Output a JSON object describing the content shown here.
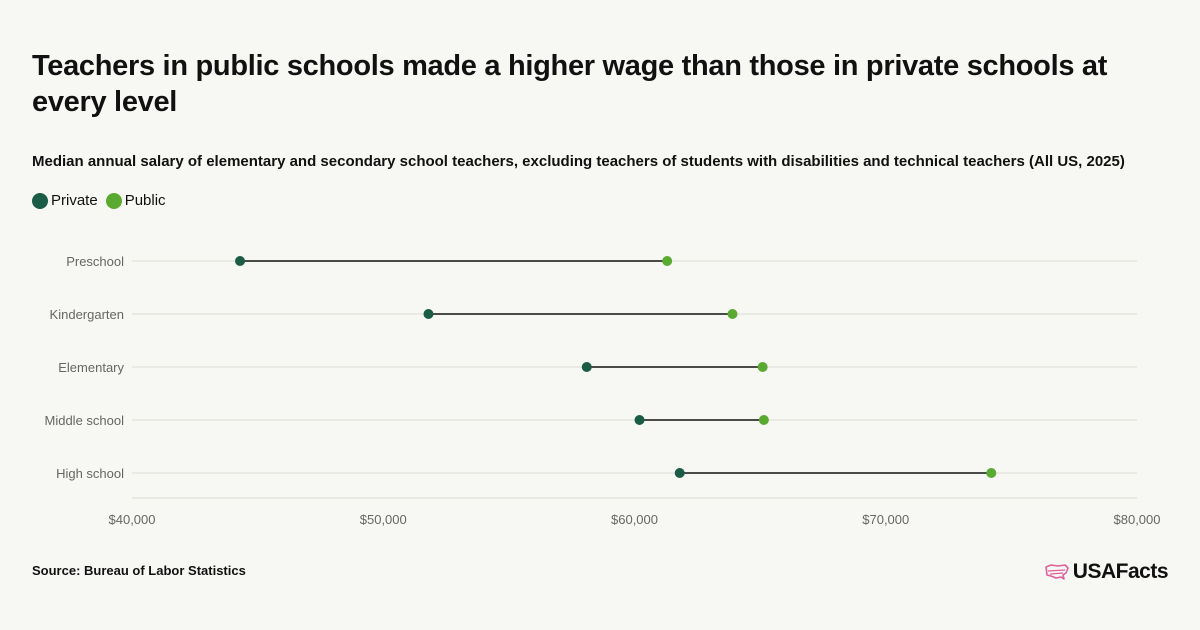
{
  "title": "Teachers in public schools made a higher wage than those in private schools at every level",
  "subtitle": "Median annual salary of elementary and secondary school teachers, excluding teachers of students with disabilities and technical teachers (All US, 2025)",
  "source": "Source: Bureau of Labor Statistics",
  "logo_text": "USAFacts",
  "colors": {
    "private": "#1a5c45",
    "public": "#5aaa32",
    "connector": "#111111",
    "grid": "#dcdcd6",
    "axis_text": "#666666",
    "logo_icon": "#e0609a"
  },
  "chart_data": {
    "type": "dumbbell",
    "title": "Teachers in public schools made a higher wage than those in private schools at every level",
    "subtitle": "Median annual salary of elementary and secondary school teachers, excluding teachers of students with disabilities and technical teachers (All US, 2025)",
    "categories": [
      "Preschool",
      "Kindergarten",
      "Elementary",
      "Middle school",
      "High school"
    ],
    "series": [
      {
        "name": "Private",
        "values": [
          44300,
          51800,
          58100,
          60200,
          61800
        ]
      },
      {
        "name": "Public",
        "values": [
          61300,
          63900,
          65100,
          65150,
          74200
        ]
      }
    ],
    "xlim": [
      40000,
      80000
    ],
    "x_ticks": [
      40000,
      50000,
      60000,
      70000,
      80000
    ],
    "x_tick_labels": [
      "$40,000",
      "$50,000",
      "$60,000",
      "$70,000",
      "$80,000"
    ],
    "legend_position": "top-left",
    "grid": "horizontal"
  }
}
